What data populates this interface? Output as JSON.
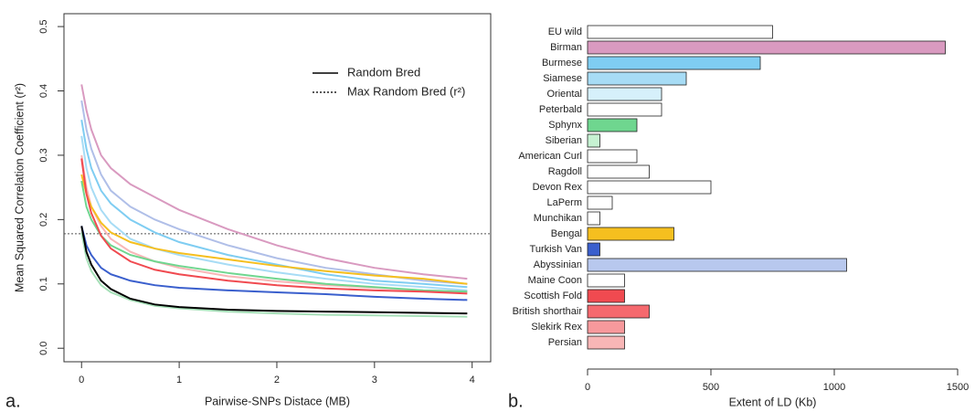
{
  "chart_data": [
    {
      "type": "line",
      "panel_label": "a.",
      "x_label": "Pairwise-SNPs Distace (MB)",
      "y_label": "Mean Squared Correlation Coefficient (r²)",
      "xlim": [
        -0.18,
        4.19
      ],
      "ylim": [
        -0.021,
        0.52
      ],
      "xticks": [
        0,
        1,
        2,
        3,
        4
      ],
      "yticks": [
        {
          "value": 0,
          "label": "0.0"
        },
        0.1,
        0.2,
        0.3,
        0.4,
        0.5
      ],
      "x": [
        0,
        0.05,
        0.1,
        0.2,
        0.3,
        0.5,
        0.75,
        1,
        1.5,
        2,
        2.5,
        3,
        3.5,
        3.95
      ],
      "series": [
        {
          "color": "#d99ac0",
          "values": [
            0.41,
            0.37,
            0.34,
            0.3,
            0.28,
            0.255,
            0.235,
            0.215,
            0.185,
            0.16,
            0.14,
            0.125,
            0.115,
            0.108
          ]
        },
        {
          "color": "#b0bfe8",
          "values": [
            0.385,
            0.34,
            0.31,
            0.27,
            0.245,
            0.22,
            0.2,
            0.185,
            0.16,
            0.14,
            0.125,
            0.115,
            0.105,
            0.1
          ]
        },
        {
          "color": "#7fcdf2",
          "values": [
            0.355,
            0.31,
            0.28,
            0.245,
            0.225,
            0.2,
            0.18,
            0.165,
            0.145,
            0.13,
            0.115,
            0.105,
            0.1,
            0.095
          ]
        },
        {
          "color": "#a7dcf5",
          "values": [
            0.33,
            0.28,
            0.25,
            0.215,
            0.195,
            0.17,
            0.155,
            0.145,
            0.13,
            0.118,
            0.108,
            0.1,
            0.095,
            0.09
          ]
        },
        {
          "color": "#f8b6b6",
          "values": [
            0.3,
            0.25,
            0.22,
            0.19,
            0.17,
            0.15,
            0.135,
            0.125,
            0.112,
            0.104,
            0.098,
            0.094,
            0.09,
            0.088
          ]
        },
        {
          "color": "#f5bf1f",
          "values": [
            0.27,
            0.24,
            0.22,
            0.195,
            0.18,
            0.165,
            0.155,
            0.148,
            0.138,
            0.128,
            0.12,
            0.113,
            0.108,
            0.1
          ]
        },
        {
          "color": "#6fd68f",
          "values": [
            0.26,
            0.22,
            0.2,
            0.175,
            0.16,
            0.145,
            0.135,
            0.128,
            0.117,
            0.108,
            0.1,
            0.095,
            0.09,
            0.088
          ]
        },
        {
          "color": "#f04a50",
          "values": [
            0.295,
            0.24,
            0.21,
            0.175,
            0.155,
            0.135,
            0.122,
            0.115,
            0.105,
            0.098,
            0.093,
            0.09,
            0.088,
            0.085
          ]
        },
        {
          "color": "#3a5fcd",
          "values": [
            0.19,
            0.16,
            0.145,
            0.125,
            0.115,
            0.105,
            0.098,
            0.094,
            0.09,
            0.087,
            0.084,
            0.08,
            0.077,
            0.075
          ]
        },
        {
          "color": "#a6e0b8",
          "values": [
            0.18,
            0.14,
            0.12,
            0.098,
            0.087,
            0.075,
            0.066,
            0.062,
            0.057,
            0.054,
            0.052,
            0.051,
            0.05,
            0.049
          ]
        },
        {
          "name": "Random Bred",
          "color": "#000000",
          "values": [
            0.19,
            0.15,
            0.13,
            0.105,
            0.092,
            0.077,
            0.068,
            0.064,
            0.06,
            0.058,
            0.057,
            0.056,
            0.055,
            0.054
          ]
        }
      ],
      "reference_line": {
        "name": "Max Random Bred (r²)",
        "value": 0.178,
        "color": "#555555",
        "style": "dotted"
      }
    },
    {
      "type": "barh",
      "panel_label": "b.",
      "x_label": "Extent of LD (Kb)",
      "xlim": [
        0,
        1500
      ],
      "xticks": [
        0,
        500,
        1000,
        1500
      ],
      "categories": [
        "EU wild",
        "Birman",
        "Burmese",
        "Siamese",
        "Oriental",
        "Peterbald",
        "Sphynx",
        "Siberian",
        "American Curl",
        "Ragdoll",
        "Devon Rex",
        "LaPerm",
        "Munchikan",
        "Bengal",
        "Turkish Van",
        "Abyssinian",
        "Maine Coon",
        "Scottish Fold",
        "British shorthair",
        "Slekirk Rex",
        "Persian"
      ],
      "values": [
        750,
        1450,
        700,
        400,
        300,
        300,
        200,
        50,
        200,
        250,
        500,
        100,
        50,
        350,
        50,
        1050,
        150,
        150,
        250,
        150,
        150
      ],
      "colors": [
        "#ffffff",
        "#d99ac0",
        "#7fcdf2",
        "#a7dcf5",
        "#d6f0fb",
        "#ffffff",
        "#6fd68f",
        "#c6f2d2",
        "#ffffff",
        "#ffffff",
        "#ffffff",
        "#ffffff",
        "#ffffff",
        "#f5bf1f",
        "#3a5fcd",
        "#b8c8ee",
        "#ffffff",
        "#f04a50",
        "#f5696e",
        "#f7999c",
        "#f8b6b6"
      ]
    }
  ]
}
